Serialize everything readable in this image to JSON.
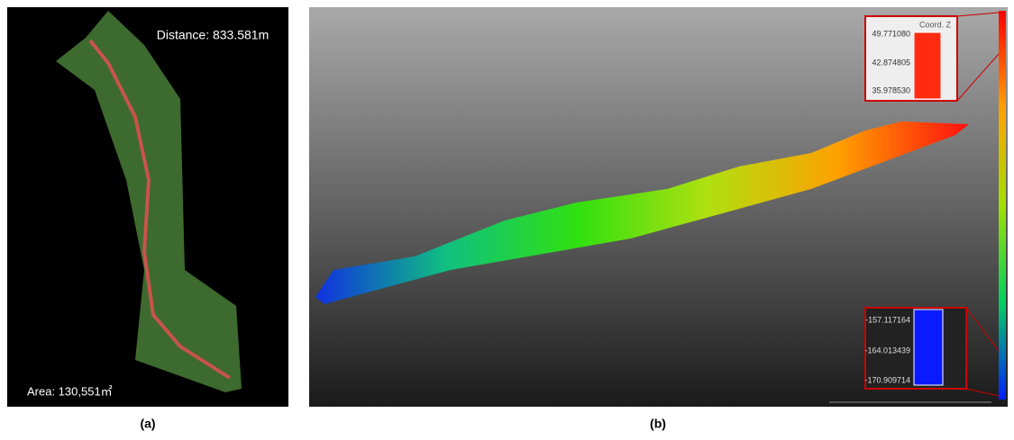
{
  "panel_a": {
    "distance": "Distance: 833.581m",
    "area": "Area: 130,551㎡",
    "caption": "(a)"
  },
  "panel_b": {
    "caption": "(b)",
    "top_inset": {
      "title": "Coord. Z",
      "labels": [
        "49.771080",
        "42.874805",
        "35.978530"
      ]
    },
    "bottom_inset": {
      "labels": [
        "-157.117164",
        "-164.013439",
        "-170.909714"
      ]
    }
  }
}
